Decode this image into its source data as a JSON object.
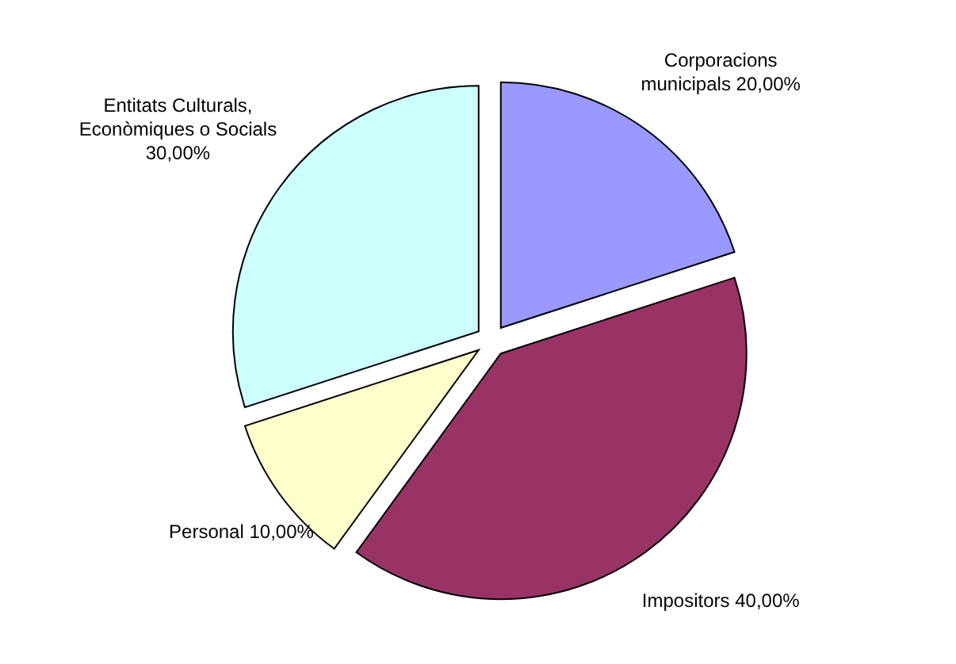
{
  "chart_data": {
    "type": "pie",
    "categories": [
      "Corporacions municipals",
      "Impositors",
      "Personal",
      "Entitats Culturals, Econòmiques o Socials"
    ],
    "values": [
      20,
      40,
      10,
      30
    ],
    "value_labels": [
      "20,00%",
      "40,00%",
      "10,00%",
      "30,00%"
    ],
    "colors": [
      "#9999ff",
      "#993366",
      "#ffffcc",
      "#ccffff"
    ],
    "legend": false
  }
}
